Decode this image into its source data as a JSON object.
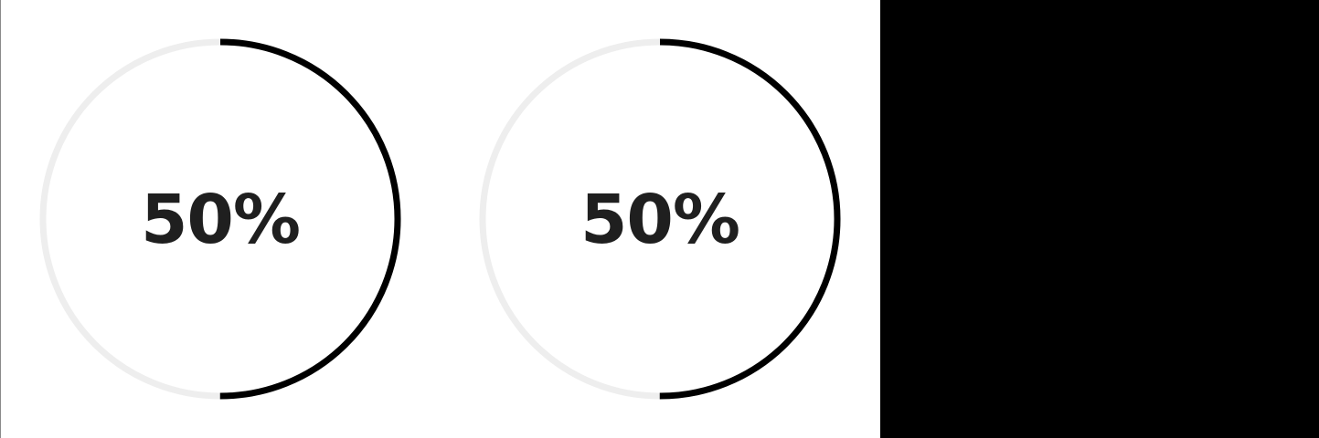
{
  "progress_rings": [
    {
      "value": 0.5,
      "label": "50%"
    },
    {
      "value": 0.5,
      "label": "50%"
    }
  ],
  "colors": {
    "track": "#eeeeee",
    "progress": "#000000",
    "text": "#1f1f1f",
    "panel": "#000000",
    "background": "#ffffff"
  }
}
